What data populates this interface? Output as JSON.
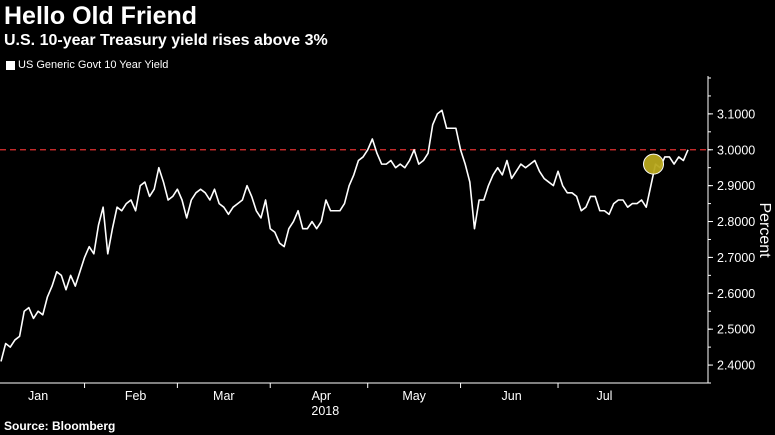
{
  "header": {
    "title": "Hello Old Friend",
    "subtitle": "U.S. 10-year Treasury yield rises above 3%"
  },
  "footer": {
    "source": "Source: Bloomberg"
  },
  "colors": {
    "background": "#000000",
    "line": "#ffffff",
    "reference_line": "#e03030",
    "highlight_fill": "#b8a81e"
  },
  "chart_data": {
    "type": "line",
    "title": "Hello Old Friend",
    "subtitle": "U.S. 10-year Treasury yield rises above 3%",
    "ylabel": "Percent",
    "xlabel": "2018",
    "ylim": [
      2.35,
      3.2
    ],
    "y_ticks": [
      "2.4000",
      "2.5000",
      "2.6000",
      "2.7000",
      "2.8000",
      "2.9000",
      "3.0000",
      "3.1000"
    ],
    "y_tick_values": [
      2.4,
      2.5,
      2.6,
      2.7,
      2.8,
      2.9,
      3.0,
      3.1
    ],
    "x_tick_labels": [
      "Jan",
      "Feb",
      "Mar",
      "Apr",
      "May",
      "Jun",
      "Jul"
    ],
    "x_tick_index": [
      8,
      29,
      48,
      69,
      89,
      110,
      130
    ],
    "x_boundary_index": [
      18,
      38,
      58,
      79,
      99,
      120
    ],
    "year_label": "2018",
    "legend": [
      "US Generic Govt 10 Year Yield"
    ],
    "grid": false,
    "legend_position": "top-left",
    "reference_line": {
      "value": 3.0,
      "style": "dashed"
    },
    "highlight_point_index": 141,
    "series": [
      {
        "name": "US Generic Govt 10 Year Yield",
        "values": [
          2.41,
          2.46,
          2.45,
          2.47,
          2.48,
          2.55,
          2.56,
          2.53,
          2.55,
          2.54,
          2.59,
          2.62,
          2.66,
          2.65,
          2.61,
          2.65,
          2.62,
          2.66,
          2.7,
          2.73,
          2.71,
          2.79,
          2.84,
          2.71,
          2.78,
          2.84,
          2.83,
          2.85,
          2.86,
          2.83,
          2.9,
          2.91,
          2.87,
          2.89,
          2.95,
          2.91,
          2.86,
          2.87,
          2.89,
          2.86,
          2.81,
          2.86,
          2.88,
          2.89,
          2.88,
          2.86,
          2.89,
          2.85,
          2.84,
          2.82,
          2.84,
          2.85,
          2.86,
          2.9,
          2.87,
          2.83,
          2.81,
          2.86,
          2.78,
          2.77,
          2.74,
          2.73,
          2.78,
          2.8,
          2.83,
          2.78,
          2.78,
          2.8,
          2.78,
          2.8,
          2.86,
          2.83,
          2.83,
          2.83,
          2.85,
          2.9,
          2.93,
          2.97,
          2.98,
          3.0,
          3.03,
          2.99,
          2.96,
          2.96,
          2.97,
          2.95,
          2.96,
          2.95,
          2.97,
          3.0,
          2.96,
          2.97,
          2.99,
          3.07,
          3.1,
          3.11,
          3.06,
          3.06,
          3.06,
          3.0,
          2.96,
          2.91,
          2.78,
          2.86,
          2.86,
          2.9,
          2.93,
          2.95,
          2.93,
          2.97,
          2.92,
          2.94,
          2.96,
          2.95,
          2.96,
          2.97,
          2.94,
          2.92,
          2.91,
          2.9,
          2.94,
          2.9,
          2.88,
          2.88,
          2.87,
          2.83,
          2.84,
          2.87,
          2.87,
          2.83,
          2.83,
          2.82,
          2.85,
          2.86,
          2.86,
          2.84,
          2.85,
          2.85,
          2.86,
          2.84,
          2.9,
          2.96,
          2.95,
          2.98,
          2.98,
          2.96,
          2.98,
          2.97,
          3.0
        ]
      }
    ]
  }
}
